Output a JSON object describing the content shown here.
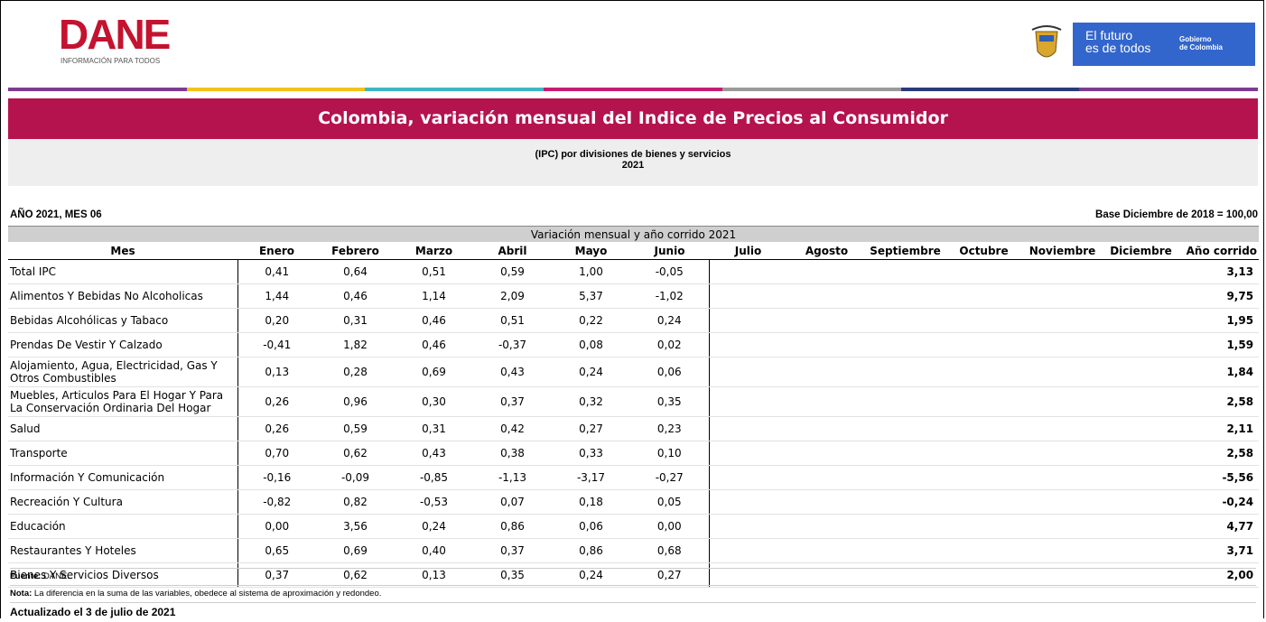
{
  "header": {
    "logo": "DANE",
    "logo_tagline": "INFORMACIÓN PARA TODOS",
    "gov_slogan_1": "El futuro",
    "gov_slogan_2": "es de todos",
    "gov_name_1": "Gobierno",
    "gov_name_2": "de Colombia"
  },
  "title": "Colombia, variación mensual del Indice de Precios al Consumidor",
  "subtitle": "(IPC) por divisiones de bienes y servicios",
  "subtitle_year": "2021",
  "period": "AÑO 2021, MES 06",
  "base": "Base Diciembre de 2018 = 100,00",
  "table": {
    "caption": "Variación mensual y año corrido 2021",
    "columns": [
      "Mes",
      "Enero",
      "Febrero",
      "Marzo",
      "Abril",
      "Mayo",
      "Junio",
      "Julio",
      "Agosto",
      "Septiembre",
      "Octubre",
      "Noviembre",
      "Diciembre",
      "Año corrido"
    ],
    "rows": [
      {
        "label": "Total IPC",
        "values": [
          "0,41",
          "0,64",
          "0,51",
          "0,59",
          "1,00",
          "-0,05"
        ],
        "total": "3,13"
      },
      {
        "label": "Alimentos Y Bebidas No Alcoholicas",
        "values": [
          "1,44",
          "0,46",
          "1,14",
          "2,09",
          "5,37",
          "-1,02"
        ],
        "total": "9,75"
      },
      {
        "label": "Bebidas Alcohólicas y Tabaco",
        "values": [
          "0,20",
          "0,31",
          "0,46",
          "0,51",
          "0,22",
          "0,24"
        ],
        "total": "1,95"
      },
      {
        "label": "Prendas De Vestir Y Calzado",
        "values": [
          "-0,41",
          "1,82",
          "0,46",
          "-0,37",
          "0,08",
          "0,02"
        ],
        "total": "1,59"
      },
      {
        "label": "Alojamiento, Agua, Electricidad, Gas Y Otros Combustibles",
        "values": [
          "0,13",
          "0,28",
          "0,69",
          "0,43",
          "0,24",
          "0,06"
        ],
        "total": "1,84"
      },
      {
        "label": "Muebles, Articulos Para El Hogar Y Para La Conservación Ordinaria Del Hogar",
        "values": [
          "0,26",
          "0,96",
          "0,30",
          "0,37",
          "0,32",
          "0,35"
        ],
        "total": "2,58"
      },
      {
        "label": "Salud",
        "values": [
          "0,26",
          "0,59",
          "0,31",
          "0,42",
          "0,27",
          "0,23"
        ],
        "total": "2,11"
      },
      {
        "label": "Transporte",
        "values": [
          "0,70",
          "0,62",
          "0,43",
          "0,38",
          "0,33",
          "0,10"
        ],
        "total": "2,58"
      },
      {
        "label": "Información Y Comunicación",
        "values": [
          "-0,16",
          "-0,09",
          "-0,85",
          "-1,13",
          "-3,17",
          "-0,27"
        ],
        "total": "-5,56"
      },
      {
        "label": "Recreación Y Cultura",
        "values": [
          "-0,82",
          "0,82",
          "-0,53",
          "0,07",
          "0,18",
          "0,05"
        ],
        "total": "-0,24"
      },
      {
        "label": "Educación",
        "values": [
          "0,00",
          "3,56",
          "0,24",
          "0,86",
          "0,06",
          "0,00"
        ],
        "total": "4,77"
      },
      {
        "label": "Restaurantes Y Hoteles",
        "values": [
          "0,65",
          "0,69",
          "0,40",
          "0,37",
          "0,86",
          "0,68"
        ],
        "total": "3,71"
      },
      {
        "label": "Bienes Y Servicios Diversos",
        "values": [
          "0,37",
          "0,62",
          "0,13",
          "0,35",
          "0,24",
          "0,27"
        ],
        "total": "2,00"
      }
    ]
  },
  "footer": {
    "source_label": "Fuente:",
    "source": "DANE.",
    "note_label": "Nota:",
    "note": "La diferencia en la suma de las variables, obedece al sistema de aproximación y redondeo.",
    "updated": "Actualizado el 3 de julio de 2021"
  }
}
